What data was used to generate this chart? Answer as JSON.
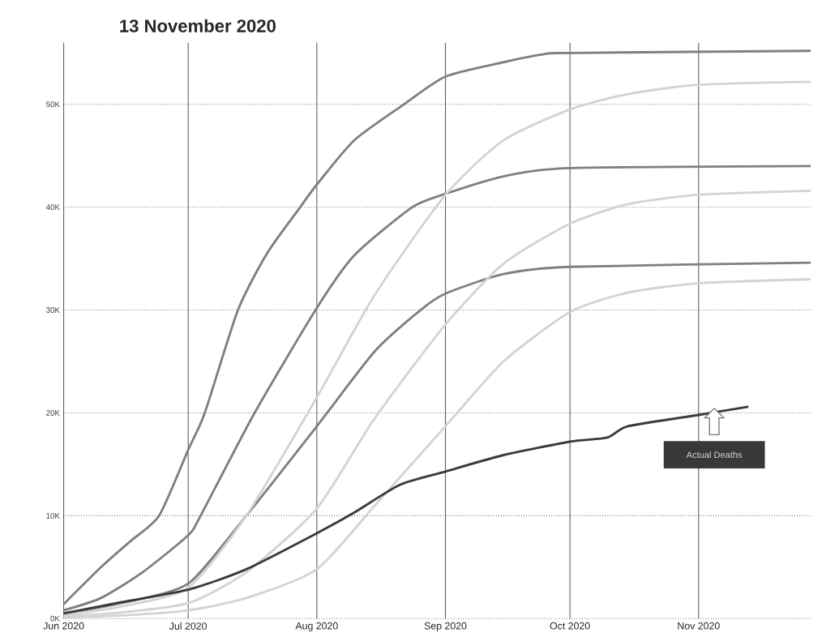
{
  "chart_data": {
    "type": "line",
    "title": "13 November 2020",
    "xlim": [
      "2020-06-01",
      "2020-11-28"
    ],
    "ylim": [
      0,
      56000
    ],
    "xticks": [
      {
        "value": "2020-06-01",
        "label": "Jun 2020"
      },
      {
        "value": "2020-07-01",
        "label": "Jul 2020"
      },
      {
        "value": "2020-08-01",
        "label": "Aug 2020"
      },
      {
        "value": "2020-09-01",
        "label": "Sep 2020"
      },
      {
        "value": "2020-10-01",
        "label": "Oct 2020"
      },
      {
        "value": "2020-11-01",
        "label": "Nov 2020"
      }
    ],
    "yticks": [
      {
        "value": 0,
        "label": "0K"
      },
      {
        "value": 10000,
        "label": "10K"
      },
      {
        "value": 20000,
        "label": "20K"
      },
      {
        "value": 30000,
        "label": "30K"
      },
      {
        "value": 40000,
        "label": "40K"
      },
      {
        "value": 50000,
        "label": "50K"
      }
    ],
    "grid": true,
    "series": [
      {
        "color": "#7f7f7f",
        "x": [
          "2020-06-01",
          "2020-06-10",
          "2020-06-17",
          "2020-06-24",
          "2020-07-01",
          "2020-07-05",
          "2020-07-13",
          "2020-07-20",
          "2020-07-28",
          "2020-08-01",
          "2020-08-10",
          "2020-08-22",
          "2020-09-01",
          "2020-09-15",
          "2020-09-25",
          "2020-10-01",
          "2020-11-28"
        ],
        "values": [
          1400,
          5000,
          7500,
          10000,
          16400,
          20000,
          30000,
          35500,
          40000,
          42200,
          46500,
          50000,
          52700,
          54100,
          54900,
          55000,
          55200
        ]
      },
      {
        "color": "#7f7f7f",
        "x": [
          "2020-06-01",
          "2020-06-10",
          "2020-06-20",
          "2020-07-01",
          "2020-07-04",
          "2020-07-17",
          "2020-08-01",
          "2020-08-10",
          "2020-08-24",
          "2020-09-01",
          "2020-09-15",
          "2020-10-01",
          "2020-11-28"
        ],
        "values": [
          800,
          2000,
          4500,
          8100,
          10000,
          20000,
          30200,
          35300,
          40000,
          41300,
          43000,
          43800,
          44000
        ]
      },
      {
        "color": "#7f7f7f",
        "x": [
          "2020-06-01",
          "2020-06-15",
          "2020-07-01",
          "2020-07-15",
          "2020-08-01",
          "2020-08-15",
          "2020-08-26",
          "2020-09-01",
          "2020-09-15",
          "2020-10-01",
          "2020-11-28"
        ],
        "values": [
          500,
          1500,
          3400,
          10000,
          18700,
          26000,
          30000,
          31600,
          33500,
          34200,
          34600
        ]
      },
      {
        "color": "#d3d3d3",
        "x": [
          "2020-06-01",
          "2020-06-15",
          "2020-07-01",
          "2020-07-15",
          "2020-08-01",
          "2020-08-15",
          "2020-09-01",
          "2020-09-15",
          "2020-10-01",
          "2020-10-15",
          "2020-11-01",
          "2020-11-28"
        ],
        "values": [
          300,
          1200,
          3000,
          10000,
          21500,
          31500,
          41200,
          46500,
          49500,
          51000,
          51900,
          52200
        ]
      },
      {
        "color": "#d3d3d3",
        "x": [
          "2020-06-01",
          "2020-06-15",
          "2020-07-01",
          "2020-07-15",
          "2020-08-01",
          "2020-08-15",
          "2020-09-01",
          "2020-09-15",
          "2020-10-01",
          "2020-10-15",
          "2020-11-01",
          "2020-11-28"
        ],
        "values": [
          200,
          600,
          1500,
          4500,
          10700,
          19500,
          28600,
          34500,
          38400,
          40300,
          41200,
          41600
        ]
      },
      {
        "color": "#d3d3d3",
        "x": [
          "2020-06-01",
          "2020-06-15",
          "2020-07-01",
          "2020-07-15",
          "2020-08-01",
          "2020-08-15",
          "2020-09-01",
          "2020-09-15",
          "2020-10-01",
          "2020-10-15",
          "2020-11-01",
          "2020-11-28"
        ],
        "values": [
          100,
          300,
          800,
          2000,
          4800,
          11000,
          18700,
          25000,
          29800,
          31700,
          32600,
          33000
        ]
      },
      {
        "color": "#3a3a3a",
        "x": [
          "2020-06-01",
          "2020-06-15",
          "2020-07-01",
          "2020-07-15",
          "2020-08-01",
          "2020-08-10",
          "2020-08-21",
          "2020-09-01",
          "2020-09-15",
          "2020-10-01",
          "2020-10-10",
          "2020-10-15",
          "2020-11-01",
          "2020-11-13"
        ],
        "values": [
          500,
          1600,
          2800,
          4800,
          8300,
          10300,
          13000,
          14300,
          15900,
          17200,
          17600,
          18700,
          19800,
          20600
        ]
      }
    ],
    "annotations": [
      "Actual Deaths"
    ]
  }
}
